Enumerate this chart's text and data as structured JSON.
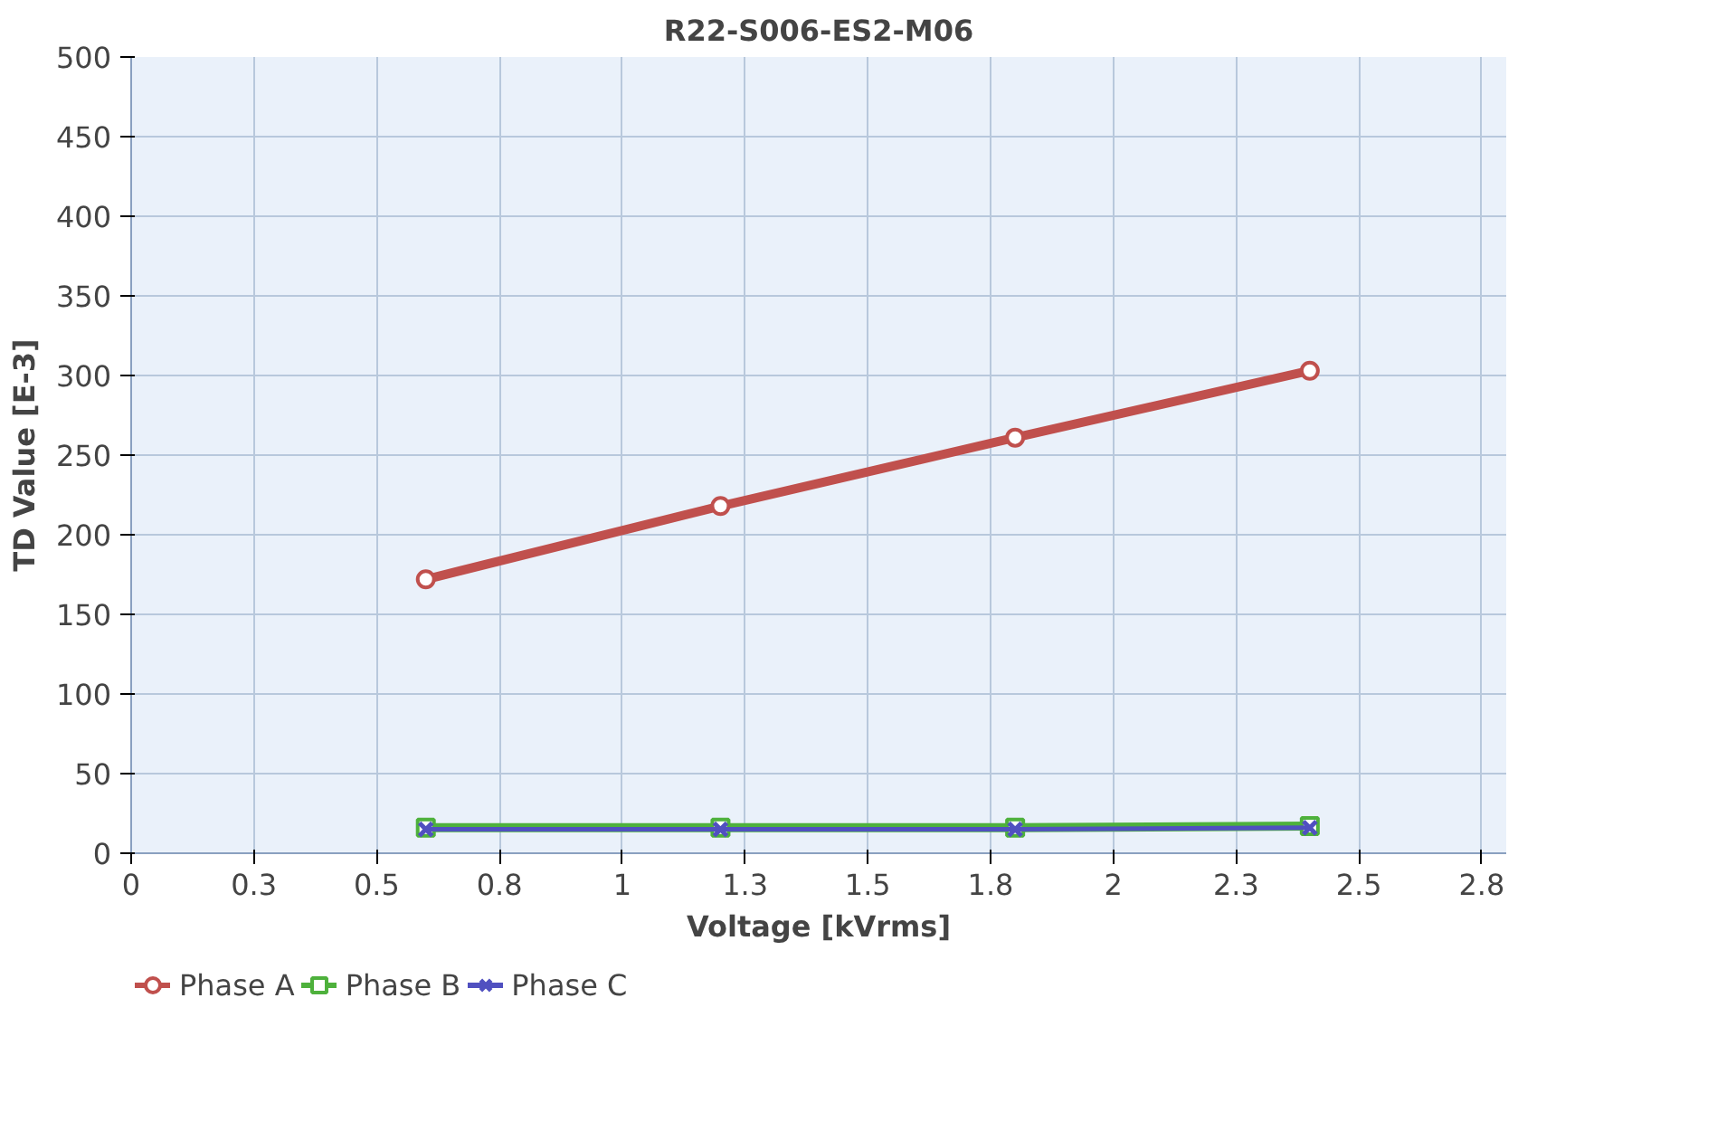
{
  "chart_data": {
    "type": "line",
    "title": "R22-S006-ES2-M06",
    "xlabel": "Voltage [kVrms]",
    "ylabel": "TD Value [E-3]",
    "x": [
      0.6,
      1.2,
      1.8,
      2.4
    ],
    "series": [
      {
        "name": "Phase A",
        "color": "#c0504d",
        "marker": "circle",
        "values": [
          172,
          218,
          261,
          303
        ]
      },
      {
        "name": "Phase B",
        "color": "#4eb13c",
        "marker": "square",
        "values": [
          16,
          16,
          16,
          17
        ]
      },
      {
        "name": "Phase C",
        "color": "#5050c0",
        "marker": "cross",
        "values": [
          15,
          15,
          15,
          16
        ]
      }
    ],
    "xlim": [
      0,
      2.8
    ],
    "xticks": [
      0,
      {
        "value": 0.25,
        "label": "0.3"
      },
      0.5,
      {
        "value": 0.75,
        "label": "0.8"
      },
      1,
      {
        "value": 1.25,
        "label": "1.3"
      },
      1.5,
      {
        "value": 1.75,
        "label": "1.8"
      },
      2,
      {
        "value": 2.25,
        "label": "2.3"
      },
      2.5,
      {
        "value": 2.75,
        "label": "2.8"
      }
    ],
    "ylim": [
      0,
      500
    ],
    "yticks": [
      0,
      50,
      100,
      150,
      200,
      250,
      300,
      350,
      400,
      450,
      500
    ],
    "grid": true,
    "legend": "bottom",
    "line_style": "solid"
  }
}
